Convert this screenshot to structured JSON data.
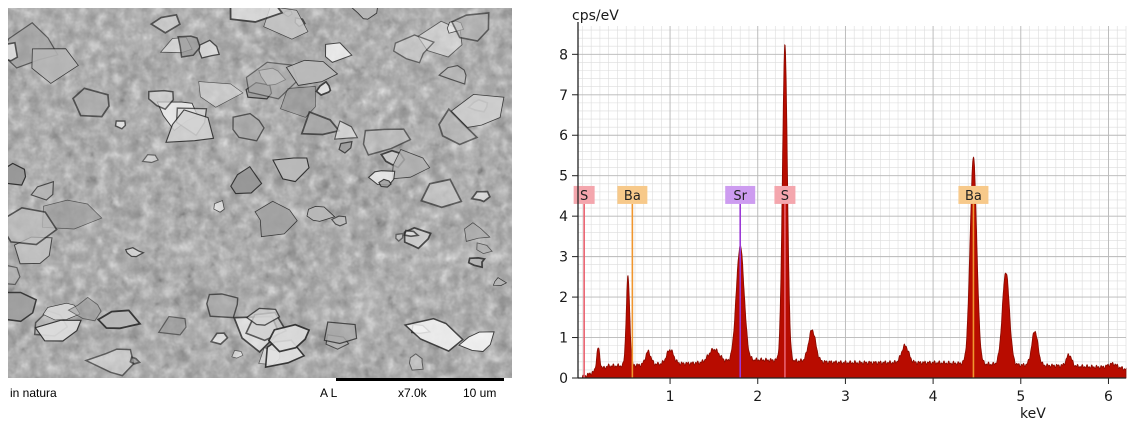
{
  "sem": {
    "label": "in natura",
    "detector": "A L",
    "magnification": "x7.0k",
    "scale_label": "10 um"
  },
  "chart_data": {
    "type": "area",
    "ylabel": "cps/eV",
    "xlabel": "keV",
    "xlim": [
      -0.05,
      6.2
    ],
    "ylim": [
      0,
      8.7
    ],
    "xticks": [
      1,
      2,
      3,
      4,
      5,
      6
    ],
    "yticks": [
      0,
      1,
      2,
      3,
      4,
      5,
      6,
      7,
      8
    ],
    "grid": true,
    "fill_color": "#b80c00",
    "spectrum": {
      "baseline": [
        [
          0.0,
          0.02
        ],
        [
          0.1,
          0.12
        ],
        [
          0.3,
          0.3
        ],
        [
          0.5,
          0.3
        ],
        [
          0.8,
          0.34
        ],
        [
          1.2,
          0.36
        ],
        [
          1.6,
          0.4
        ],
        [
          2.0,
          0.45
        ],
        [
          2.5,
          0.42
        ],
        [
          3.0,
          0.38
        ],
        [
          3.5,
          0.38
        ],
        [
          4.0,
          0.38
        ],
        [
          4.5,
          0.35
        ],
        [
          5.0,
          0.32
        ],
        [
          5.5,
          0.3
        ],
        [
          6.0,
          0.26
        ],
        [
          6.2,
          0.22
        ]
      ],
      "peaks": [
        {
          "x": 0.18,
          "height": 0.55,
          "width": 0.018
        },
        {
          "x": 0.52,
          "height": 2.2,
          "width": 0.02
        },
        {
          "x": 0.75,
          "height": 0.32,
          "width": 0.03
        },
        {
          "x": 1.0,
          "height": 0.35,
          "width": 0.04
        },
        {
          "x": 1.5,
          "height": 0.32,
          "width": 0.06
        },
        {
          "x": 1.8,
          "height": 2.85,
          "width": 0.045
        },
        {
          "x": 2.31,
          "height": 7.8,
          "width": 0.028
        },
        {
          "x": 2.62,
          "height": 0.78,
          "width": 0.04
        },
        {
          "x": 3.68,
          "height": 0.42,
          "width": 0.04
        },
        {
          "x": 4.46,
          "height": 5.1,
          "width": 0.038
        },
        {
          "x": 4.83,
          "height": 2.3,
          "width": 0.04
        },
        {
          "x": 5.16,
          "height": 0.85,
          "width": 0.035
        },
        {
          "x": 5.55,
          "height": 0.28,
          "width": 0.03
        },
        {
          "x": 6.05,
          "height": 0.1,
          "width": 0.05
        }
      ]
    },
    "element_lines": [
      {
        "label": "S",
        "x": 0.02,
        "marker_y": 4.5,
        "color": "#e8606e",
        "tag": "#f4a6ad"
      },
      {
        "label": "Ba",
        "x": 0.57,
        "marker_y": 4.5,
        "color": "#f0962e",
        "tag": "#f7c98a"
      },
      {
        "label": "Sr",
        "x": 1.8,
        "marker_y": 4.5,
        "color": "#9b39d6",
        "tag": "#cd9cf0"
      },
      {
        "label": "S",
        "x": 2.31,
        "marker_y": 4.5,
        "color": "#e8606e",
        "tag": "#f4a6ad"
      },
      {
        "label": "Ba",
        "x": 4.46,
        "marker_y": 4.5,
        "color": "#f0962e",
        "tag": "#f7c98a"
      }
    ]
  }
}
